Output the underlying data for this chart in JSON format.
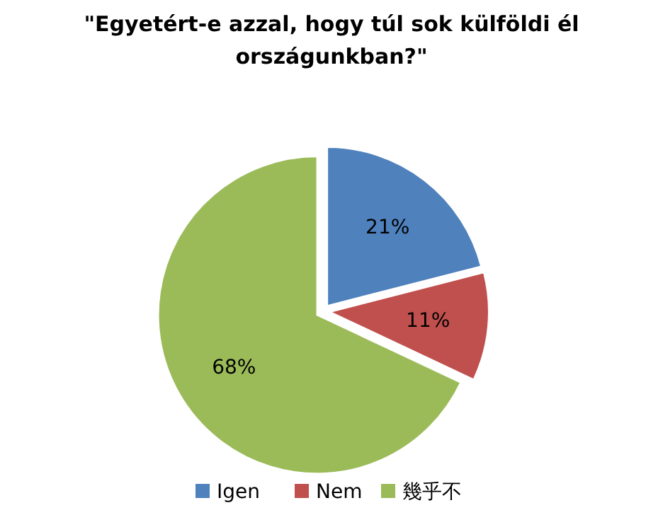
{
  "chart_data": {
    "type": "pie",
    "title": "\"Egyetért-e azzal, hogy túl sok külföldi él országunkban?\"",
    "categories": [
      "Igen",
      "Nem",
      "幾乎不"
    ],
    "values": [
      21,
      11,
      68
    ],
    "colors": [
      "#4f81bd",
      "#c0504d",
      "#9bbb59"
    ],
    "value_labels": [
      "21%",
      "11%",
      "68%"
    ],
    "legend": "bottom"
  }
}
